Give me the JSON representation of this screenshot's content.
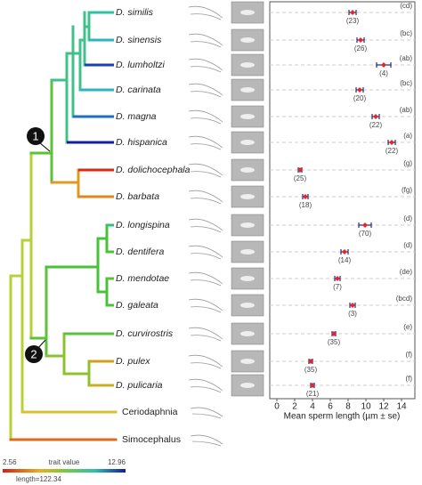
{
  "tree": {
    "tips": [
      "D. similis",
      "D. sinensis",
      "D. lumholtzi",
      "D. carinata",
      "D. magna",
      "D. hispanica",
      "D. dolichocephala",
      "D. barbata",
      "D. longispina",
      "D. dentifera",
      "D. mendotae",
      "D. galeata",
      "D. curvirostris",
      "D. pulex",
      "D. pulicaria",
      "Ceriodaphnia",
      "Simocephalus"
    ],
    "tip_colors": [
      "#2fc2a0",
      "#2ab5c0",
      "#1a3fb0",
      "#2ab5c0",
      "#1f6ec8",
      "#14209e",
      "#d92a1a",
      "#e0861a",
      "#2fc27a",
      "#4cc23a",
      "#5cc23a",
      "#4cc23a",
      "#58c23a",
      "#d0a020",
      "#c8b020",
      "#d8c030",
      "#e06a1a"
    ],
    "nodes": [
      "1",
      "2"
    ],
    "legend": {
      "min": 2.56,
      "title": "trait value",
      "max": 12.96,
      "length": "length=122.34"
    }
  },
  "chart_data": {
    "type": "errorbar",
    "x_label": "Mean sperm length (µm ± se)",
    "categories": [
      "D. similis",
      "D. sinensis",
      "D. lumholtzi",
      "D. carinata",
      "D. magna",
      "D. hispanica",
      "D. dolichocephala",
      "D. barbata",
      "D. longispina",
      "D. dentifera",
      "D. mendotae",
      "D. galeata",
      "D. curvirostris",
      "D. pulex",
      "D. pulicaria"
    ],
    "values": [
      8.5,
      9.4,
      12,
      9.3,
      11.1,
      12.9,
      2.6,
      3.2,
      9.9,
      7.6,
      6.8,
      8.5,
      6.4,
      3.8,
      4.0
    ],
    "errors": [
      0.4,
      0.4,
      0.8,
      0.4,
      0.4,
      0.4,
      0.2,
      0.3,
      0.7,
      0.4,
      0.3,
      0.3,
      0.2,
      0.2,
      0.2
    ],
    "sample_sizes": [
      "(23)",
      "(26)",
      "(4)",
      "(20)",
      "(22)",
      "(22)",
      "(25)",
      "(18)",
      "(70)",
      "(14)",
      "(7)",
      "(3)",
      "(35)",
      "(35)",
      "(21)"
    ],
    "groups": [
      "(cd)",
      "(bc)",
      "(ab)",
      "(bc)",
      "(ab)",
      "(a)",
      "(g)",
      "(fg)",
      "(d)",
      "(d)",
      "(de)",
      "(bcd)",
      "(e)",
      "(f)",
      "(f)"
    ],
    "point_color": "#e02828",
    "bar_color": "#2a2a7a",
    "xlim": [
      -0.8,
      15.5
    ],
    "xticks": [
      0,
      2,
      4,
      6,
      8,
      10,
      12,
      14
    ]
  }
}
